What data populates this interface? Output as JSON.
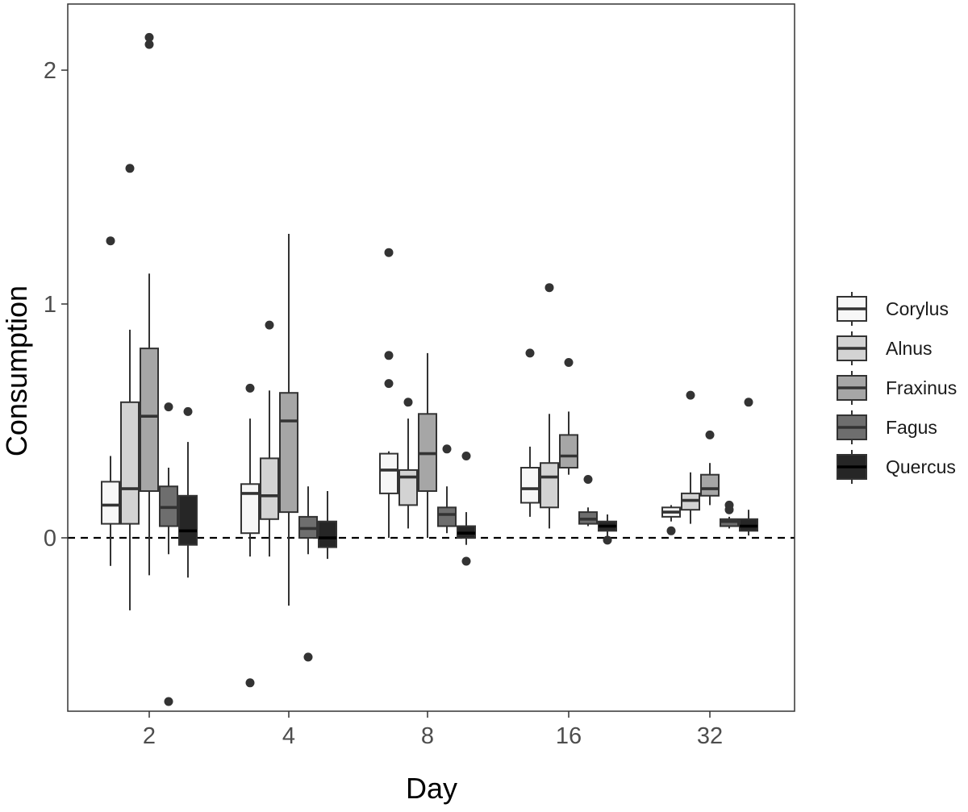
{
  "chart_data": {
    "type": "boxplot",
    "title": "",
    "xlabel": "Day",
    "ylabel": "Consumption",
    "categories": [
      "2",
      "4",
      "8",
      "16",
      "32"
    ],
    "ylim": [
      -0.82,
      2.28
    ],
    "yticks": [
      0,
      1,
      2
    ],
    "ytick_labels": [
      "0",
      "1",
      "2"
    ],
    "reference_line": {
      "y": 0,
      "style": "dashed"
    },
    "grid": false,
    "legend_position": "right",
    "series": [
      {
        "name": "Corylus",
        "fill": "#f7f7f7",
        "boxes": [
          {
            "day": "2",
            "q1": 0.06,
            "median": 0.14,
            "q3": 0.24,
            "whisker_low": -0.12,
            "whisker_high": 0.35,
            "outliers": [
              1.27
            ]
          },
          {
            "day": "4",
            "q1": 0.02,
            "median": 0.19,
            "q3": 0.23,
            "whisker_low": -0.08,
            "whisker_high": 0.51,
            "outliers": [
              0.64,
              -0.62
            ]
          },
          {
            "day": "8",
            "q1": 0.19,
            "median": 0.29,
            "q3": 0.36,
            "whisker_low": 0.0,
            "whisker_high": 0.37,
            "outliers": [
              1.22,
              0.78,
              0.66
            ]
          },
          {
            "day": "16",
            "q1": 0.15,
            "median": 0.21,
            "q3": 0.3,
            "whisker_low": 0.09,
            "whisker_high": 0.39,
            "outliers": [
              0.79
            ]
          },
          {
            "day": "32",
            "q1": 0.09,
            "median": 0.11,
            "q3": 0.13,
            "whisker_low": 0.07,
            "whisker_high": 0.14,
            "outliers": [
              0.03
            ]
          }
        ]
      },
      {
        "name": "Alnus",
        "fill": "#d3d3d3",
        "boxes": [
          {
            "day": "2",
            "q1": 0.06,
            "median": 0.21,
            "q3": 0.58,
            "whisker_low": -0.31,
            "whisker_high": 0.89,
            "outliers": [
              1.58
            ]
          },
          {
            "day": "4",
            "q1": 0.08,
            "median": 0.18,
            "q3": 0.34,
            "whisker_low": -0.08,
            "whisker_high": 0.63,
            "outliers": [
              0.91
            ]
          },
          {
            "day": "8",
            "q1": 0.14,
            "median": 0.26,
            "q3": 0.29,
            "whisker_low": 0.04,
            "whisker_high": 0.51,
            "outliers": [
              0.58
            ]
          },
          {
            "day": "16",
            "q1": 0.13,
            "median": 0.26,
            "q3": 0.32,
            "whisker_low": 0.04,
            "whisker_high": 0.53,
            "outliers": [
              1.07
            ]
          },
          {
            "day": "32",
            "q1": 0.12,
            "median": 0.16,
            "q3": 0.19,
            "whisker_low": 0.06,
            "whisker_high": 0.28,
            "outliers": [
              0.61
            ]
          }
        ]
      },
      {
        "name": "Fraxinus",
        "fill": "#a6a6a6",
        "boxes": [
          {
            "day": "2",
            "q1": 0.2,
            "median": 0.52,
            "q3": 0.81,
            "whisker_low": -0.16,
            "whisker_high": 1.13,
            "outliers": [
              2.14,
              2.11
            ]
          },
          {
            "day": "4",
            "q1": 0.11,
            "median": 0.5,
            "q3": 0.62,
            "whisker_low": -0.29,
            "whisker_high": 1.3,
            "outliers": []
          },
          {
            "day": "8",
            "q1": 0.2,
            "median": 0.36,
            "q3": 0.53,
            "whisker_low": 0.0,
            "whisker_high": 0.79,
            "outliers": []
          },
          {
            "day": "16",
            "q1": 0.3,
            "median": 0.35,
            "q3": 0.44,
            "whisker_low": 0.27,
            "whisker_high": 0.54,
            "outliers": [
              0.75
            ]
          },
          {
            "day": "32",
            "q1": 0.18,
            "median": 0.21,
            "q3": 0.27,
            "whisker_low": 0.14,
            "whisker_high": 0.32,
            "outliers": [
              0.44
            ]
          }
        ]
      },
      {
        "name": "Fagus",
        "fill": "#6e6e6e",
        "boxes": [
          {
            "day": "2",
            "q1": 0.05,
            "median": 0.13,
            "q3": 0.22,
            "whisker_low": -0.07,
            "whisker_high": 0.3,
            "outliers": [
              0.56,
              -0.7
            ]
          },
          {
            "day": "4",
            "q1": 0.0,
            "median": 0.04,
            "q3": 0.09,
            "whisker_low": -0.07,
            "whisker_high": 0.22,
            "outliers": [
              -0.51
            ]
          },
          {
            "day": "8",
            "q1": 0.05,
            "median": 0.1,
            "q3": 0.13,
            "whisker_low": 0.02,
            "whisker_high": 0.22,
            "outliers": [
              0.38
            ]
          },
          {
            "day": "16",
            "q1": 0.06,
            "median": 0.08,
            "q3": 0.11,
            "whisker_low": 0.05,
            "whisker_high": 0.13,
            "outliers": [
              0.25
            ]
          },
          {
            "day": "32",
            "q1": 0.05,
            "median": 0.07,
            "q3": 0.08,
            "whisker_low": 0.04,
            "whisker_high": 0.09,
            "outliers": [
              0.14,
              0.12
            ]
          }
        ]
      },
      {
        "name": "Quercus",
        "fill": "#262626",
        "boxes": [
          {
            "day": "2",
            "q1": -0.03,
            "median": 0.03,
            "q3": 0.18,
            "whisker_low": -0.17,
            "whisker_high": 0.41,
            "outliers": [
              0.54
            ]
          },
          {
            "day": "4",
            "q1": -0.04,
            "median": 0.0,
            "q3": 0.07,
            "whisker_low": -0.09,
            "whisker_high": 0.2,
            "outliers": []
          },
          {
            "day": "8",
            "q1": 0.0,
            "median": 0.02,
            "q3": 0.05,
            "whisker_low": -0.03,
            "whisker_high": 0.11,
            "outliers": [
              0.35,
              -0.1
            ]
          },
          {
            "day": "16",
            "q1": 0.03,
            "median": 0.05,
            "q3": 0.07,
            "whisker_low": 0.0,
            "whisker_high": 0.1,
            "outliers": [
              -0.01
            ]
          },
          {
            "day": "32",
            "q1": 0.03,
            "median": 0.05,
            "q3": 0.08,
            "whisker_low": 0.01,
            "whisker_high": 0.12,
            "outliers": [
              0.58
            ]
          }
        ]
      }
    ]
  }
}
